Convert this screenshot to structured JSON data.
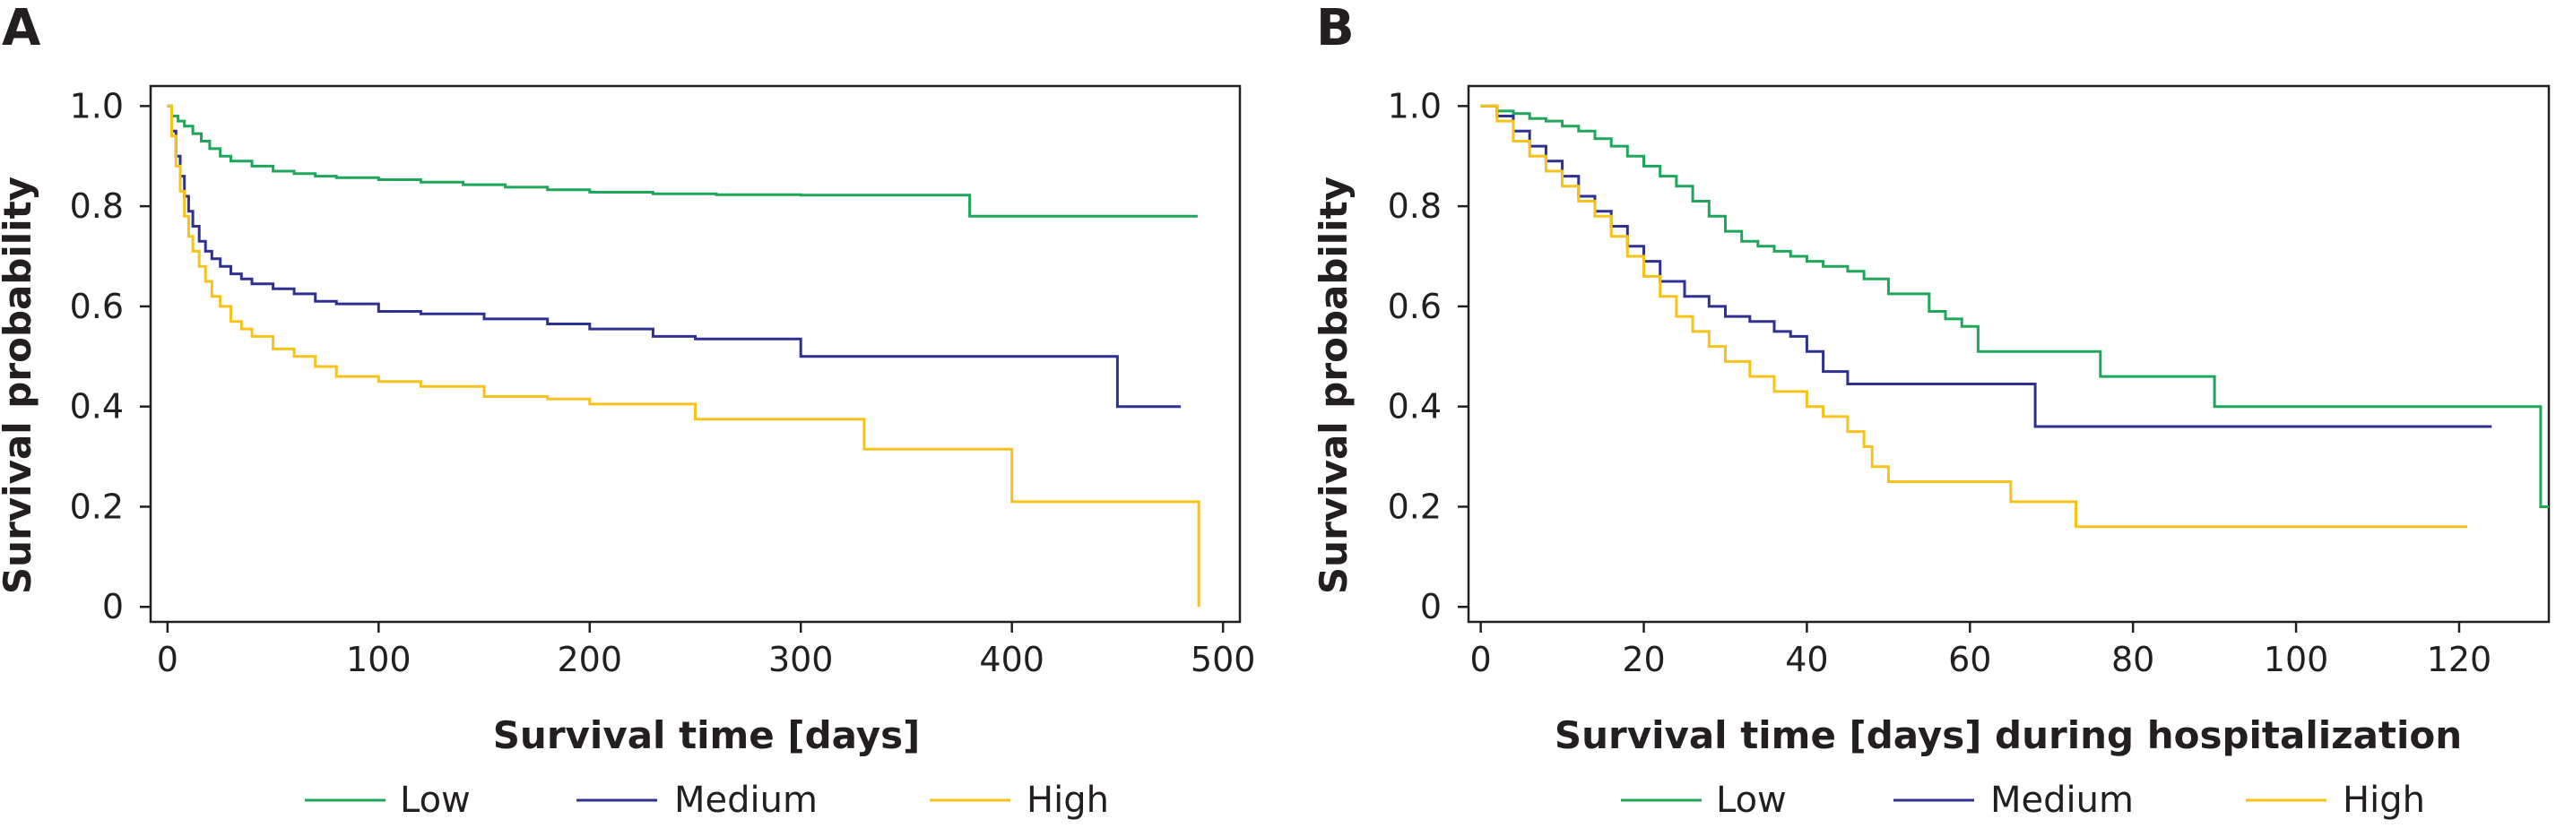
{
  "figure": {
    "legend": [
      {
        "label": "Low",
        "color": "#1fa65a"
      },
      {
        "label": "Medium",
        "color": "#2e3192"
      },
      {
        "label": "High",
        "color": "#f7c21a"
      }
    ]
  },
  "panels": [
    {
      "letter": "A",
      "ylabel": "Survival probability",
      "xlabel": "Survival time [days]",
      "xticks": [
        "0",
        "100",
        "200",
        "300",
        "400",
        "500"
      ],
      "yticks": [
        "0",
        "0.2",
        "0.4",
        "0.6",
        "0.8",
        "1.0"
      ]
    },
    {
      "letter": "B",
      "ylabel": "Survival probability",
      "xlabel": "Survival time [days] during hospitalization",
      "xticks": [
        "0",
        "20",
        "40",
        "60",
        "80",
        "100",
        "120"
      ],
      "yticks": [
        "0",
        "0.2",
        "0.4",
        "0.6",
        "0.8",
        "1.0"
      ]
    }
  ],
  "chart_data": [
    {
      "type": "line",
      "step": true,
      "xlabel": "Survival time [days]",
      "ylabel": "Survival probability",
      "xlim": [
        -8,
        508
      ],
      "ylim": [
        -0.03,
        1.04
      ],
      "xticks": [
        0,
        100,
        200,
        300,
        400,
        500
      ],
      "yticks": [
        0,
        0.2,
        0.4,
        0.6,
        0.8,
        1.0
      ],
      "grid": false,
      "legend_position": "bottom",
      "series": [
        {
          "name": "Low",
          "color": "#1fa65a",
          "x": [
            0,
            2,
            5,
            8,
            12,
            16,
            20,
            25,
            30,
            40,
            50,
            60,
            70,
            80,
            100,
            120,
            140,
            160,
            180,
            200,
            230,
            260,
            300,
            380,
            488
          ],
          "y": [
            1.0,
            0.98,
            0.97,
            0.96,
            0.945,
            0.93,
            0.915,
            0.9,
            0.89,
            0.88,
            0.87,
            0.865,
            0.86,
            0.857,
            0.853,
            0.848,
            0.843,
            0.838,
            0.833,
            0.828,
            0.825,
            0.823,
            0.822,
            0.78,
            0.78
          ]
        },
        {
          "name": "Medium",
          "color": "#2e3192",
          "x": [
            0,
            2,
            4,
            6,
            8,
            10,
            12,
            15,
            18,
            21,
            25,
            30,
            35,
            40,
            50,
            60,
            70,
            80,
            100,
            120,
            150,
            180,
            200,
            230,
            250,
            300,
            450,
            480
          ],
          "y": [
            1.0,
            0.95,
            0.9,
            0.86,
            0.82,
            0.79,
            0.76,
            0.73,
            0.71,
            0.695,
            0.68,
            0.665,
            0.655,
            0.645,
            0.635,
            0.625,
            0.61,
            0.605,
            0.59,
            0.585,
            0.575,
            0.565,
            0.555,
            0.54,
            0.535,
            0.5,
            0.4,
            0.4
          ]
        },
        {
          "name": "High",
          "color": "#f7c21a",
          "x": [
            0,
            2,
            4,
            6,
            8,
            10,
            12,
            15,
            18,
            21,
            25,
            30,
            35,
            40,
            50,
            60,
            70,
            80,
            100,
            120,
            150,
            180,
            200,
            250,
            330,
            400,
            488,
            488.5
          ],
          "y": [
            1.0,
            0.94,
            0.88,
            0.83,
            0.78,
            0.74,
            0.71,
            0.68,
            0.65,
            0.62,
            0.6,
            0.57,
            0.555,
            0.54,
            0.515,
            0.5,
            0.48,
            0.46,
            0.45,
            0.44,
            0.42,
            0.415,
            0.405,
            0.375,
            0.315,
            0.21,
            0.21,
            0.0
          ]
        }
      ]
    },
    {
      "type": "line",
      "step": true,
      "xlabel": "Survival time [days] during hospitalization",
      "ylabel": "Survival probability",
      "xlim": [
        -1.5,
        131
      ],
      "ylim": [
        -0.03,
        1.04
      ],
      "xticks": [
        0,
        20,
        40,
        60,
        80,
        100,
        120
      ],
      "yticks": [
        0,
        0.2,
        0.4,
        0.6,
        0.8,
        1.0
      ],
      "grid": false,
      "legend_position": "bottom",
      "series": [
        {
          "name": "Low",
          "color": "#1fa65a",
          "x": [
            0,
            2,
            4,
            6,
            8,
            10,
            12,
            14,
            16,
            18,
            20,
            22,
            24,
            26,
            28,
            30,
            32,
            34,
            36,
            38,
            40,
            42,
            45,
            47,
            50,
            55,
            57,
            59,
            61,
            65,
            70,
            76,
            80,
            85,
            90,
            95,
            130,
            131
          ],
          "y": [
            1.0,
            0.99,
            0.985,
            0.975,
            0.97,
            0.96,
            0.95,
            0.935,
            0.92,
            0.9,
            0.88,
            0.86,
            0.84,
            0.81,
            0.78,
            0.75,
            0.73,
            0.72,
            0.71,
            0.7,
            0.69,
            0.68,
            0.67,
            0.655,
            0.625,
            0.59,
            0.575,
            0.56,
            0.51,
            0.51,
            0.51,
            0.46,
            0.46,
            0.46,
            0.4,
            0.4,
            0.2,
            0.2
          ]
        },
        {
          "name": "Medium",
          "color": "#2e3192",
          "x": [
            0,
            2,
            4,
            6,
            8,
            10,
            12,
            14,
            16,
            18,
            20,
            22,
            25,
            28,
            30,
            33,
            36,
            38,
            40,
            42,
            45,
            50,
            55,
            60,
            68,
            124
          ],
          "y": [
            1.0,
            0.98,
            0.95,
            0.92,
            0.89,
            0.86,
            0.82,
            0.79,
            0.76,
            0.72,
            0.69,
            0.65,
            0.62,
            0.6,
            0.58,
            0.57,
            0.55,
            0.54,
            0.51,
            0.47,
            0.445,
            0.445,
            0.445,
            0.445,
            0.36,
            0.36
          ]
        },
        {
          "name": "High",
          "color": "#f7c21a",
          "x": [
            0,
            2,
            4,
            6,
            8,
            10,
            12,
            14,
            16,
            18,
            20,
            22,
            24,
            26,
            28,
            30,
            33,
            36,
            40,
            42,
            45,
            47,
            48,
            50,
            55,
            60,
            65,
            70,
            73,
            80,
            121
          ],
          "y": [
            1.0,
            0.97,
            0.93,
            0.9,
            0.87,
            0.84,
            0.81,
            0.78,
            0.74,
            0.7,
            0.66,
            0.62,
            0.58,
            0.55,
            0.52,
            0.49,
            0.46,
            0.43,
            0.4,
            0.38,
            0.35,
            0.32,
            0.28,
            0.25,
            0.25,
            0.25,
            0.21,
            0.21,
            0.16,
            0.16,
            0.16
          ]
        }
      ]
    }
  ]
}
